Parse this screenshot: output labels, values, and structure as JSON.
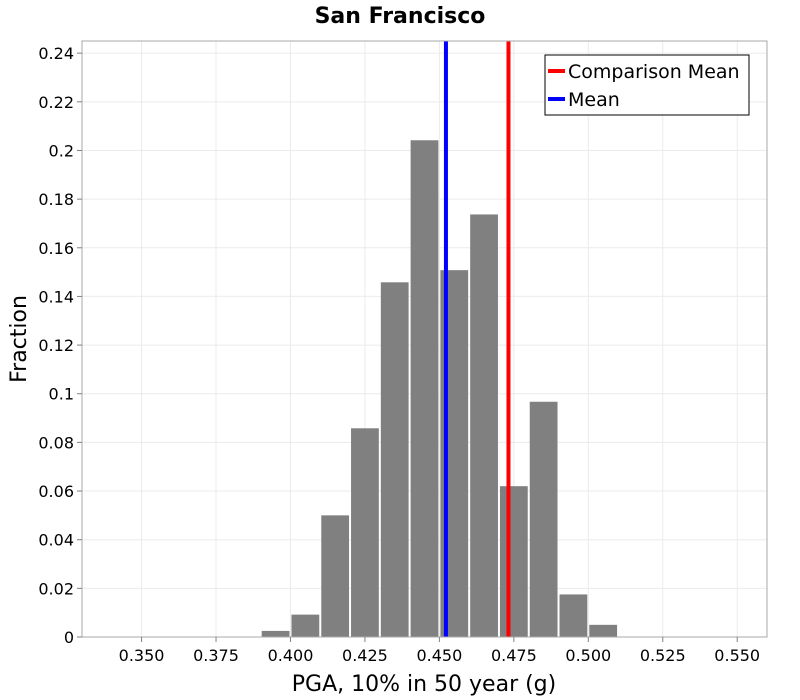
{
  "chart_data": {
    "type": "bar",
    "title": "San Francisco",
    "xlabel": "PGA, 10% in 50 year (g)",
    "ylabel": "Fraction",
    "xlim": [
      0.33,
      0.56
    ],
    "ylim": [
      0,
      0.245
    ],
    "bin_width": 0.01,
    "bins": [
      {
        "start": 0.39,
        "end": 0.4,
        "value": 0.0025
      },
      {
        "start": 0.4,
        "end": 0.41,
        "value": 0.0092
      },
      {
        "start": 0.41,
        "end": 0.42,
        "value": 0.05
      },
      {
        "start": 0.42,
        "end": 0.43,
        "value": 0.0858
      },
      {
        "start": 0.43,
        "end": 0.44,
        "value": 0.1458
      },
      {
        "start": 0.44,
        "end": 0.45,
        "value": 0.2042
      },
      {
        "start": 0.45,
        "end": 0.46,
        "value": 0.1508
      },
      {
        "start": 0.46,
        "end": 0.47,
        "value": 0.1737
      },
      {
        "start": 0.47,
        "end": 0.48,
        "value": 0.062
      },
      {
        "start": 0.48,
        "end": 0.49,
        "value": 0.0967
      },
      {
        "start": 0.49,
        "end": 0.5,
        "value": 0.0175
      },
      {
        "start": 0.5,
        "end": 0.51,
        "value": 0.005
      }
    ],
    "bar_color": "#808080",
    "x_ticks": [
      {
        "value": 0.35,
        "label": "0.350"
      },
      {
        "value": 0.375,
        "label": "0.375"
      },
      {
        "value": 0.4,
        "label": "0.400"
      },
      {
        "value": 0.425,
        "label": "0.425"
      },
      {
        "value": 0.45,
        "label": "0.450"
      },
      {
        "value": 0.475,
        "label": "0.475"
      },
      {
        "value": 0.5,
        "label": "0.500"
      },
      {
        "value": 0.525,
        "label": "0.525"
      },
      {
        "value": 0.55,
        "label": "0.550"
      }
    ],
    "y_ticks": [
      {
        "value": 0,
        "label": "0"
      },
      {
        "value": 0.02,
        "label": "0.02"
      },
      {
        "value": 0.04,
        "label": "0.04"
      },
      {
        "value": 0.06,
        "label": "0.06"
      },
      {
        "value": 0.08,
        "label": "0.08"
      },
      {
        "value": 0.1,
        "label": "0.1"
      },
      {
        "value": 0.12,
        "label": "0.12"
      },
      {
        "value": 0.14,
        "label": "0.14"
      },
      {
        "value": 0.16,
        "label": "0.16"
      },
      {
        "value": 0.18,
        "label": "0.18"
      },
      {
        "value": 0.2,
        "label": "0.2"
      },
      {
        "value": 0.22,
        "label": "0.22"
      },
      {
        "value": 0.24,
        "label": "0.24"
      }
    ],
    "vlines": [
      {
        "name": "Comparison Mean",
        "x": 0.4732,
        "color": "#ff0000"
      },
      {
        "name": "Mean",
        "x": 0.4522,
        "color": "#0000ff"
      }
    ],
    "legend": {
      "placement": "top-right",
      "entries": [
        {
          "label": "Comparison Mean",
          "color": "#ff0000"
        },
        {
          "label": "Mean",
          "color": "#0000ff"
        }
      ]
    },
    "grid": true
  }
}
